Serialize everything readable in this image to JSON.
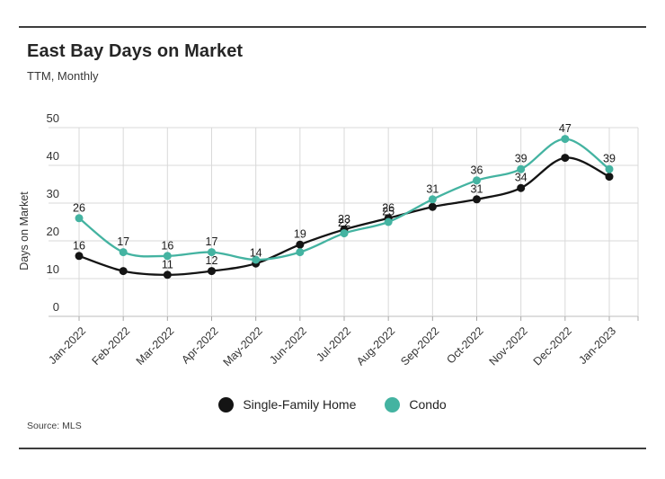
{
  "header": {
    "title": "East Bay Days on Market",
    "subtitle": "TTM, Monthly"
  },
  "source": {
    "label": "Source: MLS"
  },
  "legend": [
    {
      "name": "Single-Family Home",
      "color": "#141414"
    },
    {
      "name": "Condo",
      "color": "#44b3a1"
    }
  ],
  "colors": {
    "grid": "#d9d9d9",
    "axis": "#bdbdbd",
    "tick": "#a8a8a8",
    "text": "#333333",
    "point_label": "#1a1a1a"
  },
  "chart_data": {
    "type": "line",
    "title": "East Bay Days on Market",
    "subtitle": "TTM, Monthly",
    "xlabel": "",
    "ylabel": "Days on Market",
    "ylim": [
      0,
      50
    ],
    "ytick_interval": 10,
    "yticks": [
      "0",
      "10",
      "20",
      "30",
      "40",
      "50"
    ],
    "grid": true,
    "legend_position": "bottom",
    "categories": [
      "Jan-2022",
      "Feb-2022",
      "Mar-2022",
      "Apr-2022",
      "May-2022",
      "Jun-2022",
      "Jul-2022",
      "Aug-2022",
      "Sep-2022",
      "Oct-2022",
      "Nov-2022",
      "Dec-2022",
      "Jan-2023"
    ],
    "series": [
      {
        "name": "Single-Family Home",
        "color": "#141414",
        "values": [
          16,
          12,
          11,
          12,
          14,
          19,
          23,
          26,
          29,
          31,
          34,
          42,
          37
        ],
        "labels_visible": [
          true,
          false,
          true,
          true,
          true,
          true,
          true,
          true,
          false,
          true,
          true,
          false,
          false
        ]
      },
      {
        "name": "Condo",
        "color": "#44b3a1",
        "values": [
          26,
          17,
          16,
          17,
          15,
          17,
          22,
          25,
          31,
          36,
          39,
          47,
          39
        ],
        "labels_visible": [
          true,
          true,
          true,
          true,
          false,
          false,
          true,
          true,
          true,
          true,
          true,
          true,
          true
        ]
      }
    ]
  }
}
